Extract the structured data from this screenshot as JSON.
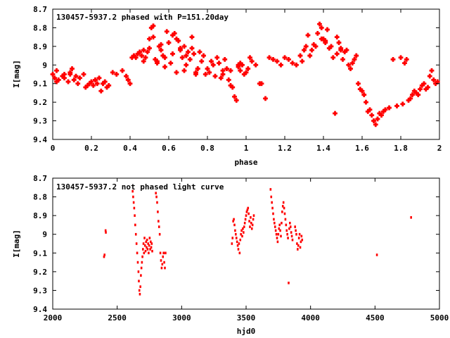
{
  "marker_color": "#ff0000",
  "axis_color": "#000000",
  "background_color": "#ffffff",
  "chart_data": [
    {
      "type": "scatter",
      "title": "130457-5937.2 phased with P=151.20day",
      "xlabel": "phase",
      "ylabel": "I[mag]",
      "xlim": [
        0,
        2
      ],
      "ylim": [
        8.7,
        9.4
      ],
      "y_inverted": true,
      "x_ticks": [
        "0",
        "0.2",
        "0.4",
        "0.6",
        "0.8",
        "1",
        "1.2",
        "1.4",
        "1.6",
        "1.8",
        "2"
      ],
      "y_ticks": [
        "8.7",
        "8.8",
        "8.9",
        "9",
        "9.1",
        "9.2",
        "9.3",
        "9.4"
      ],
      "legend": "none",
      "grid": false,
      "marker": "plus",
      "series": [
        {
          "x": [
            0.0,
            0.01,
            0.02,
            0.03,
            0.05,
            0.06,
            0.08,
            0.09,
            0.1,
            0.11,
            0.12,
            0.13,
            0.14,
            0.16,
            0.17,
            0.18,
            0.19,
            0.2,
            0.21,
            0.22,
            0.23,
            0.24,
            0.25,
            0.26,
            0.27,
            0.28,
            0.29,
            0.31,
            0.33,
            0.36,
            0.38,
            0.39,
            0.4,
            0.41,
            0.42,
            0.43,
            0.44,
            0.45,
            0.46,
            0.47,
            0.48,
            0.49,
            0.5,
            0.51,
            0.52,
            0.53,
            0.54,
            0.55,
            0.56,
            0.57,
            0.58,
            0.59,
            0.6,
            0.61,
            0.62,
            0.63,
            0.64,
            0.65,
            0.66,
            0.67,
            0.68,
            0.69,
            0.7,
            0.71,
            0.72,
            0.73,
            0.74,
            0.75,
            0.76,
            0.77,
            0.78,
            0.79,
            0.8,
            0.81,
            0.82,
            0.83,
            0.84,
            0.85,
            0.86,
            0.87,
            0.88,
            0.89,
            0.9,
            0.91,
            0.92,
            0.93,
            0.94,
            0.95,
            0.96,
            0.97,
            0.98,
            0.99,
            1.0,
            1.01,
            1.02,
            1.03,
            1.05,
            1.07,
            1.08,
            1.1,
            1.12,
            1.14,
            1.16,
            1.18,
            1.2,
            1.22,
            1.24,
            1.26,
            1.28,
            1.29,
            1.3,
            1.31,
            1.32,
            1.33,
            1.34,
            1.35,
            1.36,
            1.37,
            1.38,
            1.39,
            1.4,
            1.41,
            1.42,
            1.43,
            1.44,
            1.45,
            1.46,
            1.47,
            1.48,
            1.49,
            1.5,
            1.51,
            1.52,
            1.53,
            1.54,
            1.55,
            1.56,
            1.57,
            1.58,
            1.59,
            1.6,
            1.61,
            1.62,
            1.63,
            1.64,
            1.65,
            1.66,
            1.67,
            1.68,
            1.69,
            1.7,
            1.71,
            1.72,
            1.74,
            1.76,
            1.78,
            1.8,
            1.81,
            1.82,
            1.83,
            1.84,
            1.85,
            1.86,
            1.87,
            1.88,
            1.89,
            1.9,
            1.91,
            1.92,
            1.93,
            1.94,
            1.95,
            1.96,
            1.97,
            1.98,
            1.99,
            0.52,
            0.56,
            0.62,
            0.66,
            0.72,
            0.02,
            0.06,
            0.09,
            0.22,
            0.26,
            0.47,
            0.54,
            0.58,
            0.64,
            0.68,
            0.74,
            0.88,
            0.92,
            0.96,
            1.39,
            1.41,
            1.47,
            1.49,
            0.5,
            0.69,
            0.75,
            0.97
          ],
          "y": [
            9.05,
            9.07,
            9.03,
            9.08,
            9.06,
            9.05,
            9.09,
            9.04,
            9.02,
            9.08,
            9.06,
            9.1,
            9.07,
            9.05,
            9.12,
            9.11,
            9.1,
            9.09,
            9.11,
            9.08,
            9.1,
            9.07,
            9.14,
            9.1,
            9.09,
            9.12,
            9.11,
            9.04,
            9.05,
            9.03,
            9.06,
            9.08,
            9.1,
            8.96,
            8.95,
            8.96,
            8.94,
            8.93,
            8.95,
            8.92,
            8.96,
            8.93,
            8.86,
            8.8,
            8.85,
            8.97,
            8.98,
            8.9,
            8.92,
            8.95,
            8.96,
            8.82,
            8.88,
            8.99,
            8.94,
            8.83,
            8.86,
            8.87,
            8.92,
            8.96,
            8.9,
            8.95,
            8.93,
            8.97,
            8.91,
            8.94,
            9.04,
            9.02,
            8.93,
            8.98,
            8.95,
            9.05,
            9.02,
            9.04,
            8.98,
            9.0,
            9.06,
            8.96,
            8.99,
            9.07,
            9.05,
            8.97,
            9.02,
            9.08,
            9.03,
            9.12,
            9.17,
            9.19,
            9.01,
            9.03,
            9.0,
            9.05,
            9.04,
            9.02,
            8.96,
            8.98,
            9.0,
            9.1,
            9.1,
            9.18,
            8.96,
            8.97,
            8.98,
            9.0,
            8.96,
            8.97,
            8.99,
            9.0,
            8.95,
            8.98,
            8.92,
            8.9,
            8.84,
            8.95,
            8.92,
            8.89,
            8.9,
            8.83,
            8.78,
            8.8,
            8.86,
            8.88,
            8.81,
            8.91,
            8.9,
            8.96,
            9.26,
            8.94,
            8.88,
            8.91,
            8.97,
            8.93,
            8.92,
            9.0,
            9.02,
            8.99,
            8.97,
            8.95,
            9.1,
            9.13,
            9.14,
            9.16,
            9.2,
            9.25,
            9.24,
            9.27,
            9.3,
            9.32,
            9.29,
            9.26,
            9.27,
            9.25,
            9.24,
            9.23,
            8.97,
            9.22,
            8.96,
            9.21,
            8.99,
            8.97,
            9.19,
            9.18,
            9.16,
            9.14,
            9.15,
            9.16,
            9.13,
            9.11,
            9.1,
            9.13,
            9.12,
            9.06,
            9.03,
            9.08,
            9.1,
            9.09,
            8.79,
            8.89,
            8.84,
            8.91,
            8.85,
            9.09,
            9.07,
            9.05,
            9.08,
            9.1,
            8.98,
            8.99,
            9.01,
            9.04,
            9.03,
            9.05,
            9.03,
            9.11,
            9.0,
            8.86,
            8.87,
            8.85,
            8.92,
            8.91,
            9.0,
            9.02,
            8.99
          ]
        }
      ]
    },
    {
      "type": "scatter",
      "title": "130457-5937.2 not phased light curve",
      "xlabel": "hjd0",
      "ylabel": "I[mag]",
      "xlim": [
        2000,
        5000
      ],
      "ylim": [
        8.7,
        9.4
      ],
      "y_inverted": true,
      "x_ticks": [
        "2000",
        "2500",
        "3000",
        "3500",
        "4000",
        "4500",
        "5000"
      ],
      "y_ticks": [
        "8.7",
        "8.8",
        "8.9",
        "9",
        "9.1",
        "9.2",
        "9.3",
        "9.4"
      ],
      "legend": "none",
      "grid": false,
      "marker": "dot",
      "series": [
        {
          "x": [
            2398,
            2402,
            2410,
            2412,
            2620,
            2624,
            2628,
            2632,
            2636,
            2640,
            2645,
            2650,
            2655,
            2660,
            2665,
            2668,
            2672,
            2676,
            2680,
            2684,
            2688,
            2692,
            2696,
            2700,
            2704,
            2708,
            2712,
            2716,
            2720,
            2724,
            2728,
            2732,
            2736,
            2740,
            2744,
            2748,
            2752,
            2756,
            2760,
            2764,
            2768,
            2772,
            2800,
            2805,
            2810,
            2815,
            2820,
            2825,
            2830,
            2835,
            2840,
            2845,
            2850,
            2855,
            2860,
            2865,
            2870,
            2875,
            3390,
            3395,
            3400,
            3405,
            3410,
            3415,
            3420,
            3425,
            3430,
            3435,
            3440,
            3445,
            3450,
            3455,
            3460,
            3465,
            3470,
            3475,
            3480,
            3485,
            3490,
            3495,
            3500,
            3505,
            3510,
            3515,
            3520,
            3525,
            3530,
            3535,
            3540,
            3545,
            3550,
            3555,
            3560,
            3690,
            3695,
            3700,
            3705,
            3710,
            3715,
            3720,
            3725,
            3730,
            3735,
            3740,
            3745,
            3750,
            3755,
            3760,
            3765,
            3770,
            3775,
            3780,
            3785,
            3790,
            3795,
            3800,
            3805,
            3810,
            3815,
            3820,
            3825,
            3830,
            3835,
            3840,
            3845,
            3850,
            3855,
            3860,
            3880,
            3885,
            3890,
            3895,
            3900,
            3905,
            3910,
            3915,
            3920,
            3925,
            3930,
            3935,
            4515,
            4780
          ],
          "y": [
            9.12,
            9.11,
            8.98,
            8.99,
            8.77,
            8.8,
            8.83,
            8.86,
            8.9,
            8.95,
            9.0,
            9.05,
            9.1,
            9.15,
            9.2,
            9.25,
            9.3,
            9.32,
            9.28,
            9.22,
            9.18,
            9.15,
            9.12,
            9.08,
            9.05,
            9.1,
            9.02,
            9.06,
            9.09,
            9.04,
            9.07,
            9.03,
            9.08,
            9.05,
            9.1,
            9.06,
            9.02,
            9.08,
            9.04,
            9.07,
            9.05,
            9.09,
            8.78,
            8.8,
            8.83,
            8.88,
            8.93,
            8.96,
            9.0,
            9.1,
            9.14,
            9.18,
            9.16,
            9.12,
            9.1,
            9.15,
            9.18,
            9.1,
            9.05,
            9.02,
            8.93,
            8.92,
            8.95,
            8.98,
            9.0,
            9.02,
            9.04,
            9.06,
            9.08,
            9.05,
            9.1,
            9.03,
            9.0,
            8.98,
            9.01,
            8.97,
            8.99,
            8.96,
            8.94,
            8.92,
            8.9,
            8.88,
            8.87,
            8.86,
            8.89,
            8.93,
            8.96,
            8.91,
            8.94,
            8.97,
            8.95,
            8.92,
            8.9,
            8.76,
            8.8,
            8.83,
            8.86,
            8.89,
            8.92,
            8.94,
            8.96,
            8.98,
            9.0,
            9.02,
            9.04,
            9.0,
            8.97,
            8.95,
            8.98,
            9.01,
            8.94,
            8.88,
            8.85,
            8.83,
            8.86,
            8.89,
            8.92,
            8.95,
            8.98,
            9.0,
            9.02,
            9.26,
            8.97,
            8.94,
            8.96,
            8.99,
            9.01,
            9.03,
            8.96,
            8.98,
            9.0,
            9.05,
            9.08,
            9.06,
            9.02,
            9.0,
            9.07,
            9.04,
            9.01,
            9.03,
            9.11,
            8.91
          ]
        }
      ]
    }
  ]
}
